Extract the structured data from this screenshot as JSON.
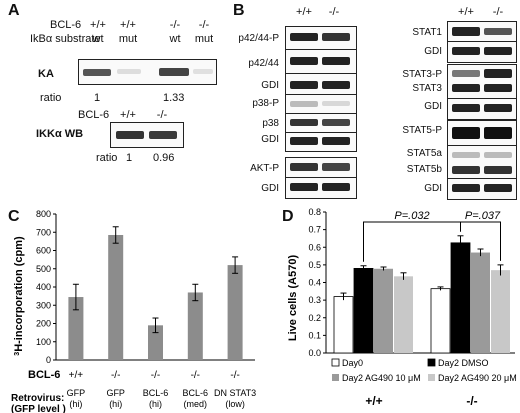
{
  "panels": {
    "a": "A",
    "b": "B",
    "c": "C",
    "d": "D"
  },
  "panel_a": {
    "bcl6_label": "BCL-6",
    "substrate_label": "IkBα substrate",
    "genotypes": [
      "+/+",
      "+/+",
      "-/-",
      "-/-"
    ],
    "substrates": [
      "wt",
      "mut",
      "wt",
      "mut"
    ],
    "ka_label": "KA",
    "ratio_label": "ratio",
    "ka_ratios": [
      "1",
      "1.33"
    ],
    "ikk_bcl6_label": "BCL-6",
    "ikk_genotypes": [
      "+/+",
      "-/-"
    ],
    "ikk_label": "IKKα WB",
    "ikk_ratios": [
      "1",
      "0.96"
    ]
  },
  "panel_b": {
    "genotypes": [
      "+/+",
      "-/-"
    ],
    "left_blots": [
      "p42/44-P",
      "p42/44",
      "GDI",
      "p38-P",
      "p38",
      "GDI",
      "AKT-P",
      "GDI"
    ],
    "right_blots": [
      "STAT1",
      "GDI",
      "STAT3-P",
      "STAT3",
      "GDI",
      "STAT5-P",
      "STAT5a",
      "STAT5b",
      "GDI"
    ]
  },
  "panel_c": {
    "ylabel_sup": "3",
    "ylabel": "H-incorporation (cpm)",
    "bcl6_row_label": "BCL-6",
    "genotype_row": [
      "+/+",
      "-/-",
      "-/-",
      "-/-",
      "-/-"
    ],
    "retro_label": "Retrovirus:",
    "gfp_level_label": "(GFP level )",
    "retro_names": [
      "GFP",
      "GFP",
      "BCL-6",
      "BCL-6",
      "DN STAT3"
    ],
    "retro_levels": [
      "(hi)",
      "(hi)",
      "(hi)",
      "(med)",
      "(low)"
    ]
  },
  "panel_d": {
    "ylabel": "Live cells (A570)",
    "pval_1": "P=.032",
    "pval_2": "P=.037",
    "group_labels": [
      "+/+",
      "-/-"
    ],
    "legend": [
      "Day0",
      "Day2 DMSO",
      "Day2 AG490 10 μM",
      "Day2 AG490 20 μM"
    ]
  },
  "colors": {
    "bar_gray": "#8c8c8c",
    "black": "#000000",
    "mid_gray": "#9a9a9a",
    "light_gray": "#c8c8c8"
  },
  "chart_data": [
    {
      "type": "bar",
      "categories": [
        "GFP (hi) +/+",
        "GFP (hi) -/-",
        "BCL-6 (hi) -/-",
        "BCL-6 (med) -/-",
        "DN STAT3 (low) -/-"
      ],
      "values": [
        345,
        685,
        190,
        370,
        520
      ],
      "errors": [
        70,
        45,
        40,
        45,
        45
      ],
      "ylabel": "3H-incorporation (cpm)",
      "ylim": [
        0,
        800
      ],
      "yticks": [
        0,
        100,
        200,
        300,
        400,
        500,
        600,
        700,
        800
      ]
    },
    {
      "type": "bar",
      "categories": [
        "+/+",
        "-/-"
      ],
      "series": [
        {
          "name": "Day0",
          "values": [
            0.32,
            0.365
          ],
          "errors": [
            0.02,
            0.01
          ]
        },
        {
          "name": "Day2 DMSO",
          "values": [
            0.48,
            0.625
          ],
          "errors": [
            0.015,
            0.04
          ]
        },
        {
          "name": "Day2 AG490 10 μM",
          "values": [
            0.478,
            0.57
          ],
          "errors": [
            0.01,
            0.02
          ]
        },
        {
          "name": "Day2 AG490 20 μM",
          "values": [
            0.435,
            0.47
          ],
          "errors": [
            0.02,
            0.03
          ]
        }
      ],
      "ylabel": "Live cells (A570)",
      "ylim": [
        0,
        0.8
      ],
      "yticks": [
        0,
        0.1,
        0.2,
        0.3,
        0.4,
        0.5,
        0.6,
        0.7,
        0.8
      ]
    }
  ]
}
